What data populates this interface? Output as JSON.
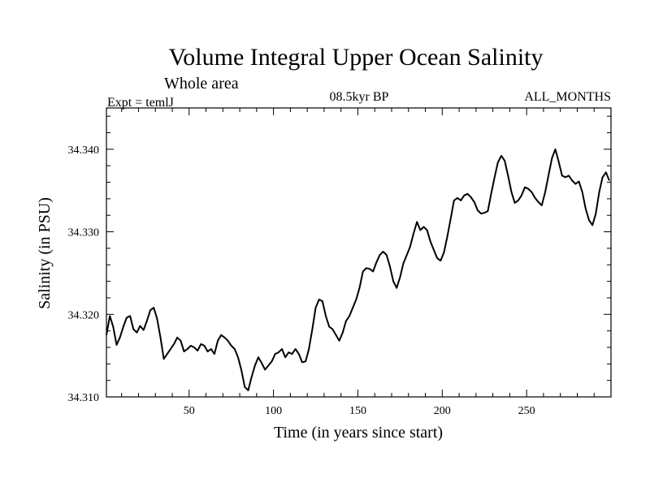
{
  "chart_data": {
    "type": "line",
    "title": "Volume Integral Upper Ocean Salinity",
    "subtitle": "Whole area",
    "experiment_label": "Expt = temlJ",
    "period_label": "08.5kyr BP",
    "months_label": "ALL_MONTHS",
    "xlabel": "Time (in years since start)",
    "ylabel": "Salinity (in PSU)",
    "xlim": [
      1,
      300
    ],
    "ylim": [
      34.31,
      34.345
    ],
    "x_ticks": [
      50,
      100,
      150,
      200,
      250
    ],
    "x_tick_labels": [
      "50",
      "100",
      "150",
      "200",
      "250"
    ],
    "y_ticks": [
      34.31,
      34.32,
      34.33,
      34.34
    ],
    "y_tick_labels": [
      "34.310",
      "34.320",
      "34.330",
      "34.340"
    ],
    "grid": false,
    "series": [
      {
        "name": "salinity",
        "x": [
          1,
          3,
          5,
          7,
          9,
          11,
          13,
          15,
          17,
          19,
          21,
          23,
          25,
          27,
          29,
          31,
          33,
          35,
          37,
          39,
          41,
          43,
          45,
          47,
          49,
          51,
          53,
          55,
          57,
          59,
          61,
          63,
          65,
          67,
          69,
          71,
          73,
          75,
          77,
          79,
          81,
          83,
          85,
          87,
          89,
          91,
          93,
          95,
          97,
          99,
          101,
          103,
          105,
          107,
          109,
          111,
          113,
          115,
          117,
          119,
          121,
          123,
          125,
          127,
          129,
          131,
          133,
          135,
          137,
          139,
          141,
          143,
          145,
          147,
          149,
          151,
          153,
          155,
          157,
          159,
          161,
          163,
          165,
          167,
          169,
          171,
          173,
          175,
          177,
          179,
          181,
          183,
          185,
          187,
          189,
          191,
          193,
          195,
          197,
          199,
          201,
          203,
          205,
          207,
          209,
          211,
          213,
          215,
          217,
          219,
          221,
          223,
          225,
          227,
          229,
          231,
          233,
          235,
          237,
          239,
          241,
          243,
          245,
          247,
          249,
          251,
          253,
          255,
          257,
          259,
          261,
          263,
          265,
          267,
          269,
          271,
          273,
          275,
          277,
          279,
          281,
          283,
          285,
          287,
          289,
          291,
          293,
          295,
          297,
          299
        ],
        "values": [
          34.3175,
          34.3198,
          34.3185,
          34.3163,
          34.3172,
          34.3185,
          34.3196,
          34.3198,
          34.3182,
          34.3178,
          34.3186,
          34.3181,
          34.3192,
          34.3205,
          34.3208,
          34.3195,
          34.3172,
          34.3146,
          34.3152,
          34.3158,
          34.3164,
          34.3172,
          34.3168,
          34.3155,
          34.3158,
          34.3162,
          34.316,
          34.3156,
          34.3164,
          34.3162,
          34.3155,
          34.3158,
          34.3152,
          34.3168,
          34.3175,
          34.3172,
          34.3168,
          34.3162,
          34.3158,
          34.3148,
          34.3132,
          34.3112,
          34.3108,
          34.3124,
          34.3138,
          34.3148,
          34.3141,
          34.3133,
          34.3138,
          34.3143,
          34.3152,
          34.3154,
          34.3158,
          34.3148,
          34.3154,
          34.3152,
          34.3158,
          34.3152,
          34.3142,
          34.3143,
          34.3158,
          34.3182,
          34.3208,
          34.3218,
          34.3216,
          34.3198,
          34.3185,
          34.3182,
          34.3175,
          34.3168,
          34.3178,
          34.3192,
          34.3198,
          34.3208,
          34.3218,
          34.3232,
          34.3252,
          34.3256,
          34.3255,
          34.3252,
          34.3263,
          34.3272,
          34.3276,
          34.3272,
          34.3258,
          34.324,
          34.3232,
          34.3245,
          34.3262,
          34.3272,
          34.3282,
          34.3298,
          34.3312,
          34.3302,
          34.3306,
          34.3302,
          34.3288,
          34.3278,
          34.3268,
          34.3265,
          34.3275,
          34.3294,
          34.3316,
          34.3338,
          34.3341,
          34.3338,
          34.3344,
          34.3346,
          34.3342,
          34.3336,
          34.3326,
          34.3322,
          34.3323,
          34.3325,
          34.3346,
          34.3366,
          34.3384,
          34.3392,
          34.3386,
          34.3368,
          34.3348,
          34.3335,
          34.3338,
          34.3344,
          34.3354,
          34.3352,
          34.3348,
          34.3341,
          34.3336,
          34.3332,
          34.3348,
          34.3369,
          34.3389,
          34.34,
          34.3385,
          34.3368,
          34.3366,
          34.3368,
          34.3362,
          34.3358,
          34.3361,
          34.3348,
          34.3328,
          34.3314,
          34.3308,
          34.3322,
          34.3348,
          34.3366,
          34.3372,
          34.3362
        ]
      }
    ]
  }
}
